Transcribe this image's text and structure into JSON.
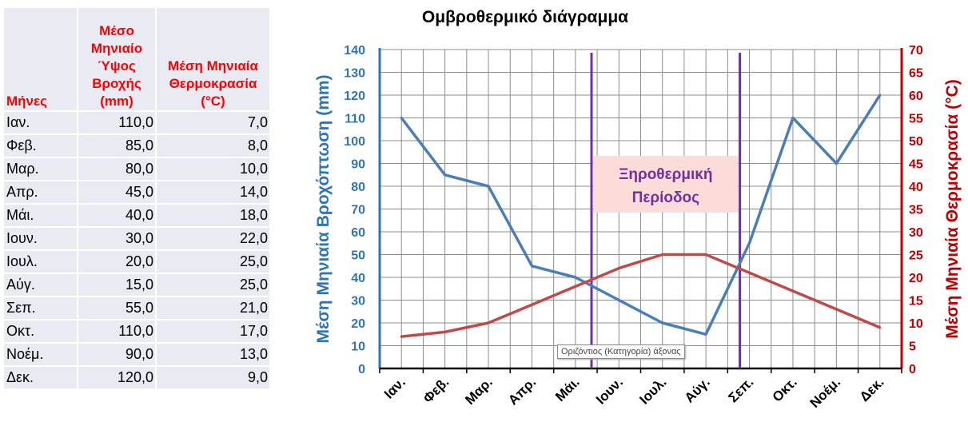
{
  "table": {
    "headers": {
      "month": "Μήνες",
      "rain": "Μέσο Μηνιαίο Ύψος Βροχής (mm)",
      "temp": "Μέση Μηνιαία Θερμοκρασία (°C)"
    },
    "rows": [
      {
        "month": "Ιαν.",
        "rain": "110,0",
        "temp": "7,0"
      },
      {
        "month": "Φεβ.",
        "rain": "85,0",
        "temp": "8,0"
      },
      {
        "month": "Μαρ.",
        "rain": "80,0",
        "temp": "10,0"
      },
      {
        "month": "Απρ.",
        "rain": "45,0",
        "temp": "14,0"
      },
      {
        "month": "Μάι.",
        "rain": "40,0",
        "temp": "18,0"
      },
      {
        "month": "Ιουν.",
        "rain": "30,0",
        "temp": "22,0"
      },
      {
        "month": "Ιουλ.",
        "rain": "20,0",
        "temp": "25,0"
      },
      {
        "month": "Αύγ.",
        "rain": "15,0",
        "temp": "25,0"
      },
      {
        "month": "Σεπ.",
        "rain": "55,0",
        "temp": "21,0"
      },
      {
        "month": "Οκτ.",
        "rain": "110,0",
        "temp": "17,0"
      },
      {
        "month": "Νοέμ.",
        "rain": "90,0",
        "temp": "13,0"
      },
      {
        "month": "Δεκ.",
        "rain": "120,0",
        "temp": "9,0"
      }
    ]
  },
  "chart_data": {
    "type": "line",
    "title": "Ομβροθερμικό διάγραμμα",
    "categories": [
      "Ιαν.",
      "Φεβ.",
      "Μαρ.",
      "Απρ.",
      "Μάι.",
      "Ιουν.",
      "Ιουλ.",
      "Αύγ.",
      "Σεπ.",
      "Οκτ.",
      "Νοέμ.",
      "Δεκ."
    ],
    "series": [
      {
        "values": [
          110,
          85,
          80,
          45,
          40,
          30,
          20,
          15,
          55,
          110,
          90,
          120
        ],
        "axis": "left",
        "color": "#4a7ebb"
      },
      {
        "values": [
          7,
          8,
          10,
          14,
          18,
          22,
          25,
          25,
          21,
          17,
          13,
          9
        ],
        "axis": "right",
        "color": "#be4b48"
      }
    ],
    "ylabel": "Μέση Μηνιαία Βροχόπτωση (mm)",
    "y2label": "Μέση Μηνιαία Θερμοκρασία (°C)",
    "ylim": [
      0,
      140
    ],
    "y2lim": [
      0,
      70
    ],
    "yticks": [
      0,
      10,
      20,
      30,
      40,
      50,
      60,
      70,
      80,
      90,
      100,
      110,
      120,
      130,
      140
    ],
    "y2ticks": [
      0,
      5,
      10,
      15,
      20,
      25,
      30,
      35,
      40,
      45,
      50,
      55,
      60,
      65,
      70
    ],
    "grid": true,
    "dry_period_bounds": [
      4.87,
      8.28
    ],
    "annotation": "Ξηροθερμική Περίοδος",
    "colors": {
      "rain_axis": "#2e75b6",
      "temp_axis": "#c00000",
      "dry_lines": "#7030a0",
      "annotation_bg": "#fbdcd8",
      "annotation_text": "#7030a0"
    }
  },
  "tooltip": "Οριζόντιος (Κατηγορία) άξονας"
}
